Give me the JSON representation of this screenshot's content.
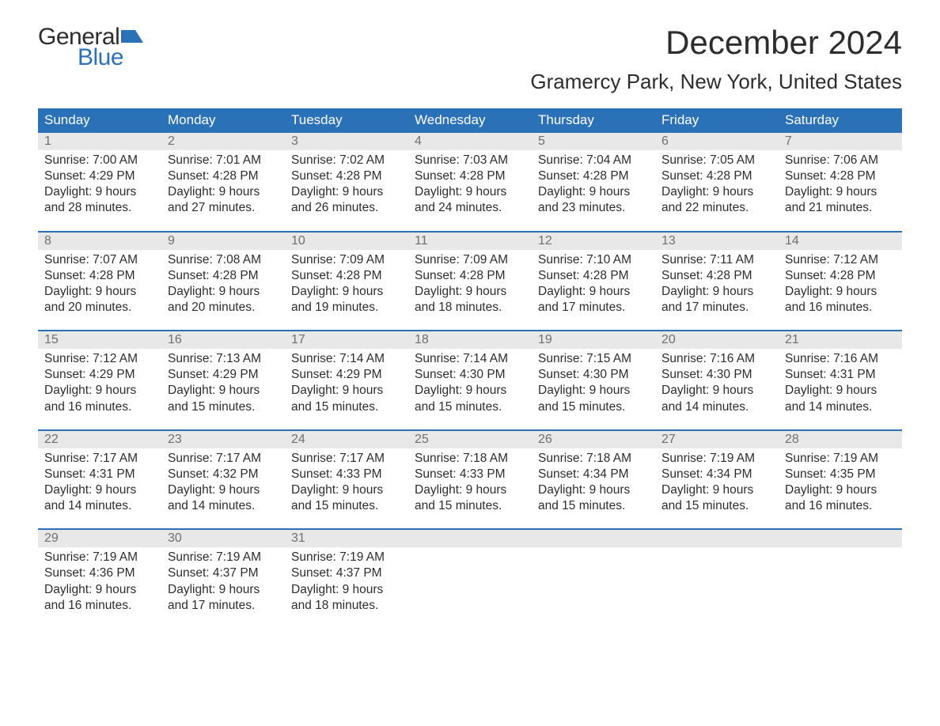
{
  "logo": {
    "text_general": "General",
    "text_blue": "Blue",
    "flag_color": "#2a71b8"
  },
  "title": {
    "month": "December 2024",
    "location": "Gramercy Park, New York, United States"
  },
  "colors": {
    "header_bg": "#2a71b8",
    "header_text": "#ffffff",
    "daynum_bg": "#e8e8e8",
    "daynum_text": "#6f6f6f",
    "body_text": "#2d2d2d",
    "divider": "#2a71b8",
    "page_bg": "#ffffff"
  },
  "typography": {
    "month_title_fontsize": 42,
    "location_fontsize": 26,
    "day_header_fontsize": 17,
    "daynum_fontsize": 16,
    "body_fontsize": 15.5
  },
  "day_headers": [
    "Sunday",
    "Monday",
    "Tuesday",
    "Wednesday",
    "Thursday",
    "Friday",
    "Saturday"
  ],
  "weeks": [
    [
      {
        "n": "1",
        "sunrise": "Sunrise: 7:00 AM",
        "sunset": "Sunset: 4:29 PM",
        "dl1": "Daylight: 9 hours",
        "dl2": "and 28 minutes."
      },
      {
        "n": "2",
        "sunrise": "Sunrise: 7:01 AM",
        "sunset": "Sunset: 4:28 PM",
        "dl1": "Daylight: 9 hours",
        "dl2": "and 27 minutes."
      },
      {
        "n": "3",
        "sunrise": "Sunrise: 7:02 AM",
        "sunset": "Sunset: 4:28 PM",
        "dl1": "Daylight: 9 hours",
        "dl2": "and 26 minutes."
      },
      {
        "n": "4",
        "sunrise": "Sunrise: 7:03 AM",
        "sunset": "Sunset: 4:28 PM",
        "dl1": "Daylight: 9 hours",
        "dl2": "and 24 minutes."
      },
      {
        "n": "5",
        "sunrise": "Sunrise: 7:04 AM",
        "sunset": "Sunset: 4:28 PM",
        "dl1": "Daylight: 9 hours",
        "dl2": "and 23 minutes."
      },
      {
        "n": "6",
        "sunrise": "Sunrise: 7:05 AM",
        "sunset": "Sunset: 4:28 PM",
        "dl1": "Daylight: 9 hours",
        "dl2": "and 22 minutes."
      },
      {
        "n": "7",
        "sunrise": "Sunrise: 7:06 AM",
        "sunset": "Sunset: 4:28 PM",
        "dl1": "Daylight: 9 hours",
        "dl2": "and 21 minutes."
      }
    ],
    [
      {
        "n": "8",
        "sunrise": "Sunrise: 7:07 AM",
        "sunset": "Sunset: 4:28 PM",
        "dl1": "Daylight: 9 hours",
        "dl2": "and 20 minutes."
      },
      {
        "n": "9",
        "sunrise": "Sunrise: 7:08 AM",
        "sunset": "Sunset: 4:28 PM",
        "dl1": "Daylight: 9 hours",
        "dl2": "and 20 minutes."
      },
      {
        "n": "10",
        "sunrise": "Sunrise: 7:09 AM",
        "sunset": "Sunset: 4:28 PM",
        "dl1": "Daylight: 9 hours",
        "dl2": "and 19 minutes."
      },
      {
        "n": "11",
        "sunrise": "Sunrise: 7:09 AM",
        "sunset": "Sunset: 4:28 PM",
        "dl1": "Daylight: 9 hours",
        "dl2": "and 18 minutes."
      },
      {
        "n": "12",
        "sunrise": "Sunrise: 7:10 AM",
        "sunset": "Sunset: 4:28 PM",
        "dl1": "Daylight: 9 hours",
        "dl2": "and 17 minutes."
      },
      {
        "n": "13",
        "sunrise": "Sunrise: 7:11 AM",
        "sunset": "Sunset: 4:28 PM",
        "dl1": "Daylight: 9 hours",
        "dl2": "and 17 minutes."
      },
      {
        "n": "14",
        "sunrise": "Sunrise: 7:12 AM",
        "sunset": "Sunset: 4:28 PM",
        "dl1": "Daylight: 9 hours",
        "dl2": "and 16 minutes."
      }
    ],
    [
      {
        "n": "15",
        "sunrise": "Sunrise: 7:12 AM",
        "sunset": "Sunset: 4:29 PM",
        "dl1": "Daylight: 9 hours",
        "dl2": "and 16 minutes."
      },
      {
        "n": "16",
        "sunrise": "Sunrise: 7:13 AM",
        "sunset": "Sunset: 4:29 PM",
        "dl1": "Daylight: 9 hours",
        "dl2": "and 15 minutes."
      },
      {
        "n": "17",
        "sunrise": "Sunrise: 7:14 AM",
        "sunset": "Sunset: 4:29 PM",
        "dl1": "Daylight: 9 hours",
        "dl2": "and 15 minutes."
      },
      {
        "n": "18",
        "sunrise": "Sunrise: 7:14 AM",
        "sunset": "Sunset: 4:30 PM",
        "dl1": "Daylight: 9 hours",
        "dl2": "and 15 minutes."
      },
      {
        "n": "19",
        "sunrise": "Sunrise: 7:15 AM",
        "sunset": "Sunset: 4:30 PM",
        "dl1": "Daylight: 9 hours",
        "dl2": "and 15 minutes."
      },
      {
        "n": "20",
        "sunrise": "Sunrise: 7:16 AM",
        "sunset": "Sunset: 4:30 PM",
        "dl1": "Daylight: 9 hours",
        "dl2": "and 14 minutes."
      },
      {
        "n": "21",
        "sunrise": "Sunrise: 7:16 AM",
        "sunset": "Sunset: 4:31 PM",
        "dl1": "Daylight: 9 hours",
        "dl2": "and 14 minutes."
      }
    ],
    [
      {
        "n": "22",
        "sunrise": "Sunrise: 7:17 AM",
        "sunset": "Sunset: 4:31 PM",
        "dl1": "Daylight: 9 hours",
        "dl2": "and 14 minutes."
      },
      {
        "n": "23",
        "sunrise": "Sunrise: 7:17 AM",
        "sunset": "Sunset: 4:32 PM",
        "dl1": "Daylight: 9 hours",
        "dl2": "and 14 minutes."
      },
      {
        "n": "24",
        "sunrise": "Sunrise: 7:17 AM",
        "sunset": "Sunset: 4:33 PM",
        "dl1": "Daylight: 9 hours",
        "dl2": "and 15 minutes."
      },
      {
        "n": "25",
        "sunrise": "Sunrise: 7:18 AM",
        "sunset": "Sunset: 4:33 PM",
        "dl1": "Daylight: 9 hours",
        "dl2": "and 15 minutes."
      },
      {
        "n": "26",
        "sunrise": "Sunrise: 7:18 AM",
        "sunset": "Sunset: 4:34 PM",
        "dl1": "Daylight: 9 hours",
        "dl2": "and 15 minutes."
      },
      {
        "n": "27",
        "sunrise": "Sunrise: 7:19 AM",
        "sunset": "Sunset: 4:34 PM",
        "dl1": "Daylight: 9 hours",
        "dl2": "and 15 minutes."
      },
      {
        "n": "28",
        "sunrise": "Sunrise: 7:19 AM",
        "sunset": "Sunset: 4:35 PM",
        "dl1": "Daylight: 9 hours",
        "dl2": "and 16 minutes."
      }
    ],
    [
      {
        "n": "29",
        "sunrise": "Sunrise: 7:19 AM",
        "sunset": "Sunset: 4:36 PM",
        "dl1": "Daylight: 9 hours",
        "dl2": "and 16 minutes."
      },
      {
        "n": "30",
        "sunrise": "Sunrise: 7:19 AM",
        "sunset": "Sunset: 4:37 PM",
        "dl1": "Daylight: 9 hours",
        "dl2": "and 17 minutes."
      },
      {
        "n": "31",
        "sunrise": "Sunrise: 7:19 AM",
        "sunset": "Sunset: 4:37 PM",
        "dl1": "Daylight: 9 hours",
        "dl2": "and 18 minutes."
      },
      {
        "empty": true
      },
      {
        "empty": true
      },
      {
        "empty": true
      },
      {
        "empty": true
      }
    ]
  ]
}
